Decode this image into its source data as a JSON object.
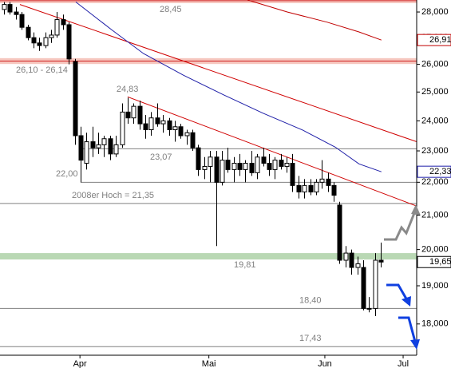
{
  "chart_data": {
    "type": "candlestick",
    "log": true,
    "ylim": [
      17.22,
      28.48
    ],
    "yticks": [
      {
        "value": 28,
        "label": "28,000"
      },
      {
        "value": 27,
        "label": "27,000"
      },
      {
        "value": 26,
        "label": "26,000"
      },
      {
        "value": 25,
        "label": "25,000"
      },
      {
        "value": 24,
        "label": "24,000"
      },
      {
        "value": 23,
        "label": "23,000"
      },
      {
        "value": 22,
        "label": "22,000"
      },
      {
        "value": 21,
        "label": "21,000"
      },
      {
        "value": 20,
        "label": "20,000"
      },
      {
        "value": 19,
        "label": "19,000"
      },
      {
        "value": 18,
        "label": "18,000"
      }
    ],
    "xlim": [
      -0.68,
      70.1
    ],
    "xticks": [
      {
        "value": 12.9,
        "label": "Apr"
      },
      {
        "value": 34.8,
        "label": "Mai"
      },
      {
        "value": 54.5,
        "label": "Jun"
      },
      {
        "value": 67.8,
        "label": "Jul"
      }
    ],
    "ohlc": [
      [
        28.1,
        28.4,
        27.9,
        28.3
      ],
      [
        28.3,
        28.4,
        27.9,
        28.0
      ],
      [
        28.0,
        28.2,
        27.7,
        27.9
      ],
      [
        27.9,
        28.0,
        27.3,
        27.4
      ],
      [
        27.4,
        27.5,
        26.9,
        27.0
      ],
      [
        27.0,
        27.2,
        26.6,
        26.8
      ],
      [
        26.8,
        27.0,
        26.5,
        26.7
      ],
      [
        26.7,
        27.2,
        26.6,
        27.0
      ],
      [
        27.0,
        27.3,
        26.8,
        27.1
      ],
      [
        27.1,
        28.0,
        27.0,
        27.7
      ],
      [
        27.7,
        27.9,
        27.3,
        27.5
      ],
      [
        27.5,
        27.6,
        26.0,
        26.2
      ],
      [
        26.1,
        26.2,
        23.2,
        23.5
      ],
      [
        23.5,
        23.8,
        22.0,
        22.7
      ],
      [
        22.6,
        23.6,
        22.4,
        23.3
      ],
      [
        23.3,
        23.8,
        22.8,
        23.1
      ],
      [
        23.1,
        23.6,
        22.9,
        23.2
      ],
      [
        23.2,
        23.5,
        22.8,
        23.4
      ],
      [
        23.4,
        23.5,
        22.7,
        22.9
      ],
      [
        22.9,
        23.5,
        22.8,
        23.2
      ],
      [
        23.2,
        24.6,
        23.1,
        24.3
      ],
      [
        24.3,
        24.8,
        23.9,
        24.1
      ],
      [
        24.1,
        24.6,
        23.9,
        24.5
      ],
      [
        24.5,
        24.7,
        23.7,
        23.9
      ],
      [
        23.9,
        24.2,
        23.4,
        23.7
      ],
      [
        23.7,
        24.3,
        23.5,
        24.1
      ],
      [
        24.1,
        24.6,
        23.8,
        23.9
      ],
      [
        23.9,
        24.2,
        23.6,
        24.0
      ],
      [
        24.0,
        24.1,
        23.5,
        23.7
      ],
      [
        23.7,
        24.0,
        23.3,
        23.8
      ],
      [
        23.8,
        23.9,
        23.4,
        23.5
      ],
      [
        23.5,
        23.7,
        23.2,
        23.6
      ],
      [
        23.6,
        23.7,
        23.0,
        23.1
      ],
      [
        23.1,
        23.2,
        22.2,
        22.4
      ],
      [
        22.4,
        22.8,
        22.1,
        22.5
      ],
      [
        22.5,
        23.0,
        22.0,
        22.8
      ],
      [
        22.8,
        23.0,
        20.1,
        22.0
      ],
      [
        22.0,
        23.0,
        21.9,
        22.7
      ],
      [
        22.7,
        23.1,
        22.3,
        22.4
      ],
      [
        22.4,
        22.8,
        22.0,
        22.6
      ],
      [
        22.6,
        22.9,
        22.2,
        22.4
      ],
      [
        22.4,
        22.7,
        22.0,
        22.6
      ],
      [
        22.6,
        23.0,
        22.2,
        22.3
      ],
      [
        22.3,
        22.9,
        22.1,
        22.8
      ],
      [
        22.8,
        23.1,
        22.5,
        22.6
      ],
      [
        22.6,
        22.9,
        22.2,
        22.4
      ],
      [
        22.4,
        22.8,
        22.1,
        22.7
      ],
      [
        22.7,
        22.9,
        22.4,
        22.5
      ],
      [
        22.5,
        22.8,
        22.3,
        22.6
      ],
      [
        22.6,
        22.9,
        21.7,
        21.9
      ],
      [
        21.9,
        22.2,
        21.5,
        21.7
      ],
      [
        21.7,
        22.1,
        21.5,
        21.9
      ],
      [
        21.9,
        22.1,
        21.6,
        21.7
      ],
      [
        21.7,
        22.1,
        21.6,
        22.0
      ],
      [
        22.0,
        22.7,
        21.8,
        22.1
      ],
      [
        22.1,
        22.3,
        21.7,
        21.9
      ],
      [
        21.9,
        22.0,
        21.4,
        21.6
      ],
      [
        21.3,
        21.4,
        19.6,
        19.7
      ],
      [
        19.7,
        20.1,
        19.5,
        19.9
      ],
      [
        19.9,
        20.0,
        19.3,
        19.5
      ],
      [
        19.5,
        19.8,
        19.3,
        19.6
      ],
      [
        19.5,
        19.7,
        18.35,
        18.4
      ],
      [
        18.4,
        18.7,
        18.3,
        18.4
      ],
      [
        18.4,
        19.9,
        18.2,
        19.7
      ],
      [
        19.7,
        20.2,
        19.5,
        19.65
      ]
    ],
    "lines": [
      {
        "color": "#1f1fa8",
        "x": [
          12.2,
          18.3,
          23.7,
          30.5,
          37.3,
          44,
          50.8,
          56.3,
          60.3,
          64.1
        ],
        "values": [
          28.4,
          27.3,
          26.4,
          25.6,
          24.9,
          24.26,
          23.68,
          23.12,
          22.58,
          22.33
        ]
      },
      {
        "color": "#c00000",
        "x": [
          41.4,
          48.1,
          54.9,
          60.3,
          64.1
        ],
        "values": [
          28.48,
          28.0,
          27.6,
          27.22,
          26.91
        ]
      }
    ],
    "trendlines": [
      {
        "color": "#d00000",
        "x": [
          2.7,
          70.1
        ],
        "values": [
          28.3,
          23.3
        ]
      },
      {
        "color": "#d00000",
        "x": [
          21.0,
          70.1
        ],
        "values": [
          24.83,
          21.27
        ],
        "label": "24,83"
      }
    ],
    "levels": [
      {
        "values": [
          28.45
        ],
        "label": "28,45",
        "style": "red"
      },
      {
        "values": [
          26.1,
          26.14
        ],
        "label": "26,10 - 26,14",
        "style": "red"
      },
      {
        "values": [
          23.07
        ],
        "label": "23,07",
        "style": "gray",
        "x_start": 13
      },
      {
        "values": [
          22.0
        ],
        "label": "22,00",
        "style": "gray",
        "x_start": 13
      },
      {
        "values": [
          21.35
        ],
        "label": "2008er Hoch  = 21,35",
        "style": "gray"
      },
      {
        "values": [
          19.81
        ],
        "label": "19,81",
        "style": "green"
      },
      {
        "values": [
          18.4
        ],
        "label": "18,40",
        "style": "gray"
      },
      {
        "values": [
          17.43
        ],
        "label": "17,43",
        "style": "gray"
      }
    ],
    "price_markers": [
      {
        "value": 26.91,
        "label": "26,91",
        "color": "#c00000"
      },
      {
        "value": 22.33,
        "label": "22,33",
        "color": "#1f1fa8"
      },
      {
        "value": 19.65,
        "label": "19,65",
        "color": "#000000"
      }
    ]
  }
}
